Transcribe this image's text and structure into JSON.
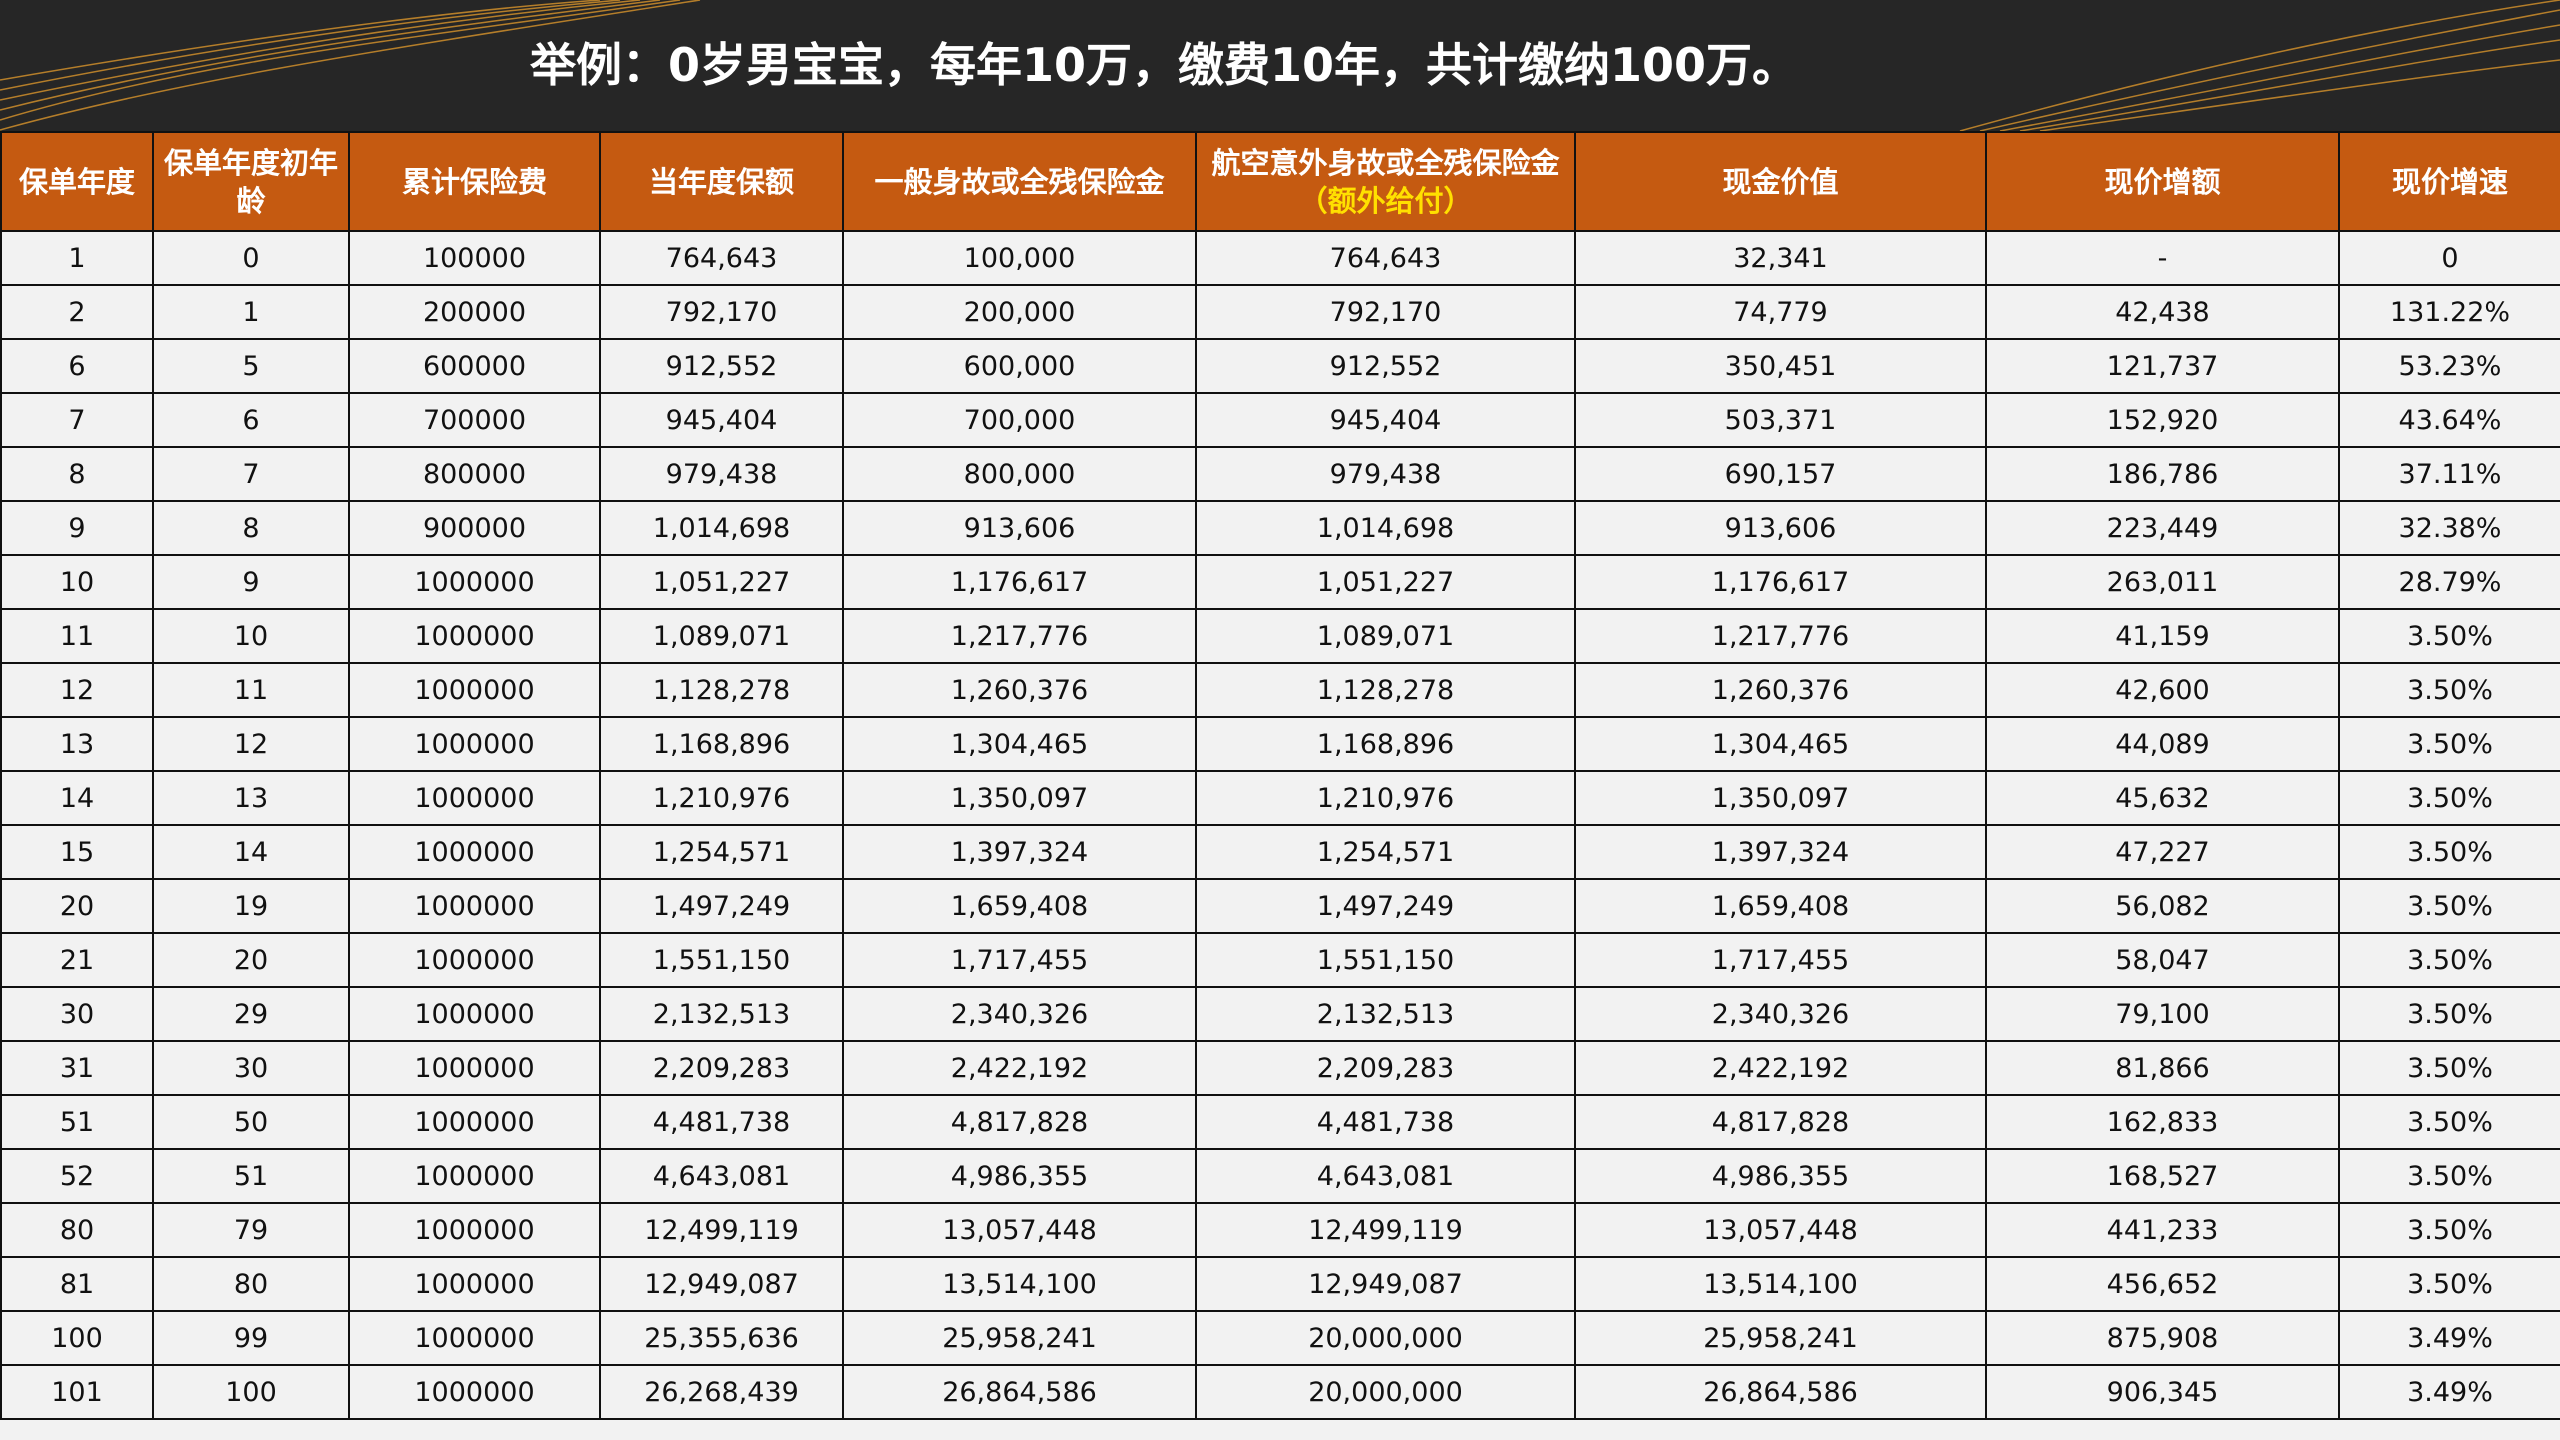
{
  "header": {
    "title": "举例：0岁男宝宝，每年10万，缴费10年，共计缴纳100万。"
  },
  "table": {
    "columns": [
      "保单年度",
      "保单年度初年龄",
      "累计保险费",
      "当年度保额",
      "一般身故或全残保险金",
      "航空意外身故或全残保险金",
      "现金价值",
      "现价增额",
      "现价增速"
    ],
    "column_note": "（额外给付）",
    "rows": [
      [
        "1",
        "0",
        "100000",
        "764,643",
        "100,000",
        "764,643",
        "32,341",
        "-",
        "0"
      ],
      [
        "2",
        "1",
        "200000",
        "792,170",
        "200,000",
        "792,170",
        "74,779",
        "42,438",
        "131.22%"
      ],
      [
        "6",
        "5",
        "600000",
        "912,552",
        "600,000",
        "912,552",
        "350,451",
        "121,737",
        "53.23%"
      ],
      [
        "7",
        "6",
        "700000",
        "945,404",
        "700,000",
        "945,404",
        "503,371",
        "152,920",
        "43.64%"
      ],
      [
        "8",
        "7",
        "800000",
        "979,438",
        "800,000",
        "979,438",
        "690,157",
        "186,786",
        "37.11%"
      ],
      [
        "9",
        "8",
        "900000",
        "1,014,698",
        "913,606",
        "1,014,698",
        "913,606",
        "223,449",
        "32.38%"
      ],
      [
        "10",
        "9",
        "1000000",
        "1,051,227",
        "1,176,617",
        "1,051,227",
        "1,176,617",
        "263,011",
        "28.79%"
      ],
      [
        "11",
        "10",
        "1000000",
        "1,089,071",
        "1,217,776",
        "1,089,071",
        "1,217,776",
        "41,159",
        "3.50%"
      ],
      [
        "12",
        "11",
        "1000000",
        "1,128,278",
        "1,260,376",
        "1,128,278",
        "1,260,376",
        "42,600",
        "3.50%"
      ],
      [
        "13",
        "12",
        "1000000",
        "1,168,896",
        "1,304,465",
        "1,168,896",
        "1,304,465",
        "44,089",
        "3.50%"
      ],
      [
        "14",
        "13",
        "1000000",
        "1,210,976",
        "1,350,097",
        "1,210,976",
        "1,350,097",
        "45,632",
        "3.50%"
      ],
      [
        "15",
        "14",
        "1000000",
        "1,254,571",
        "1,397,324",
        "1,254,571",
        "1,397,324",
        "47,227",
        "3.50%"
      ],
      [
        "20",
        "19",
        "1000000",
        "1,497,249",
        "1,659,408",
        "1,497,249",
        "1,659,408",
        "56,082",
        "3.50%"
      ],
      [
        "21",
        "20",
        "1000000",
        "1,551,150",
        "1,717,455",
        "1,551,150",
        "1,717,455",
        "58,047",
        "3.50%"
      ],
      [
        "30",
        "29",
        "1000000",
        "2,132,513",
        "2,340,326",
        "2,132,513",
        "2,340,326",
        "79,100",
        "3.50%"
      ],
      [
        "31",
        "30",
        "1000000",
        "2,209,283",
        "2,422,192",
        "2,209,283",
        "2,422,192",
        "81,866",
        "3.50%"
      ],
      [
        "51",
        "50",
        "1000000",
        "4,481,738",
        "4,817,828",
        "4,481,738",
        "4,817,828",
        "162,833",
        "3.50%"
      ],
      [
        "52",
        "51",
        "1000000",
        "4,643,081",
        "4,986,355",
        "4,643,081",
        "4,986,355",
        "168,527",
        "3.50%"
      ],
      [
        "80",
        "79",
        "1000000",
        "12,499,119",
        "13,057,448",
        "12,499,119",
        "13,057,448",
        "441,233",
        "3.50%"
      ],
      [
        "81",
        "80",
        "1000000",
        "12,949,087",
        "13,514,100",
        "12,949,087",
        "13,514,100",
        "456,652",
        "3.50%"
      ],
      [
        "100",
        "99",
        "1000000",
        "25,355,636",
        "25,958,241",
        "20,000,000",
        "25,958,241",
        "875,908",
        "3.49%"
      ],
      [
        "101",
        "100",
        "1000000",
        "26,268,439",
        "26,864,586",
        "20,000,000",
        "26,864,586",
        "906,345",
        "3.49%"
      ]
    ]
  }
}
